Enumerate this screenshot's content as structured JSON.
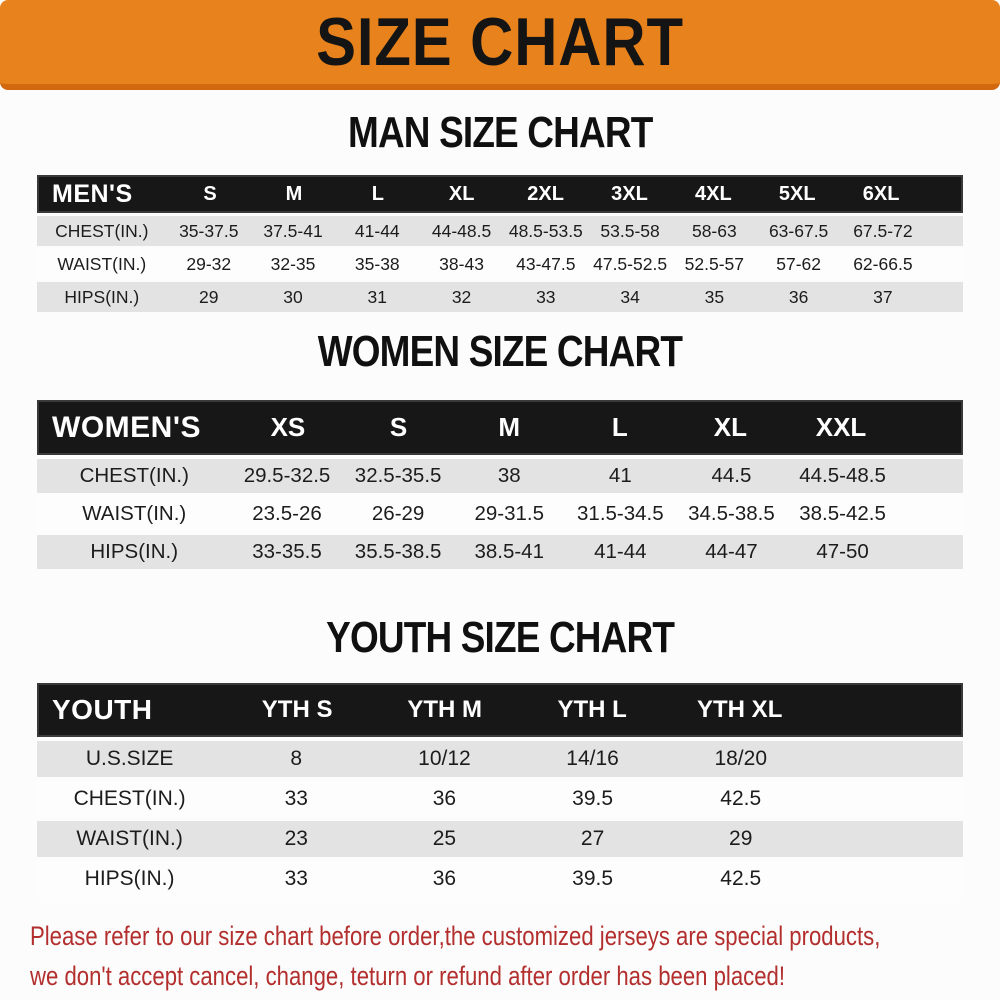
{
  "banner": {
    "title": "SIZE CHART"
  },
  "sections": [
    {
      "title": "MAN SIZE CHART",
      "header_label": "MEN'S",
      "columns": [
        "S",
        "M",
        "L",
        "XL",
        "2XL",
        "3XL",
        "4XL",
        "5XL",
        "6XL"
      ],
      "rows": [
        {
          "label": "CHEST(IN.)",
          "values": [
            "35-37.5",
            "37.5-41",
            "41-44",
            "44-48.5",
            "48.5-53.5",
            "53.5-58",
            "58-63",
            "63-67.5",
            "67.5-72"
          ]
        },
        {
          "label": "WAIST(IN.)",
          "values": [
            "29-32",
            "32-35",
            "35-38",
            "38-43",
            "43-47.5",
            "47.5-52.5",
            "52.5-57",
            "57-62",
            "62-66.5"
          ]
        },
        {
          "label": "HIPS(IN.)",
          "values": [
            "29",
            "30",
            "31",
            "32",
            "33",
            "34",
            "35",
            "36",
            "37"
          ]
        }
      ]
    },
    {
      "title": "WOMEN SIZE CHART",
      "header_label": "WOMEN'S",
      "columns": [
        "XS",
        "S",
        "M",
        "L",
        "XL",
        "XXL"
      ],
      "rows": [
        {
          "label": "CHEST(IN.)",
          "values": [
            "29.5-32.5",
            "32.5-35.5",
            "38",
            "41",
            "44.5",
            "44.5-48.5"
          ]
        },
        {
          "label": "WAIST(IN.)",
          "values": [
            "23.5-26",
            "26-29",
            "29-31.5",
            "31.5-34.5",
            "34.5-38.5",
            "38.5-42.5"
          ]
        },
        {
          "label": "HIPS(IN.)",
          "values": [
            "33-35.5",
            "35.5-38.5",
            "38.5-41",
            "41-44",
            "44-47",
            "47-50"
          ]
        }
      ]
    },
    {
      "title": "YOUTH SIZE CHART",
      "header_label": "YOUTH",
      "columns": [
        "YTH S",
        "YTH M",
        "YTH L",
        "YTH XL"
      ],
      "rows": [
        {
          "label": "U.S.SIZE",
          "values": [
            "8",
            "10/12",
            "14/16",
            "18/20"
          ]
        },
        {
          "label": "CHEST(IN.)",
          "values": [
            "33",
            "36",
            "39.5",
            "42.5"
          ]
        },
        {
          "label": "WAIST(IN.)",
          "values": [
            "23",
            "25",
            "27",
            "29"
          ]
        },
        {
          "label": "HIPS(IN.)",
          "values": [
            "33",
            "36",
            "39.5",
            "42.5"
          ]
        }
      ]
    }
  ],
  "footer": {
    "line1": "Please refer to our size chart before order,the customized jerseys are special products,",
    "line2": "we don't accept cancel, change, teturn or refund after order has been placed!"
  },
  "colors": {
    "banner_bg": "#E8821C",
    "banner_border": "#D2690E",
    "header_bar_bg": "#171717",
    "row_gray": "#E3E3E3",
    "footer_red": "#B22F2E"
  }
}
